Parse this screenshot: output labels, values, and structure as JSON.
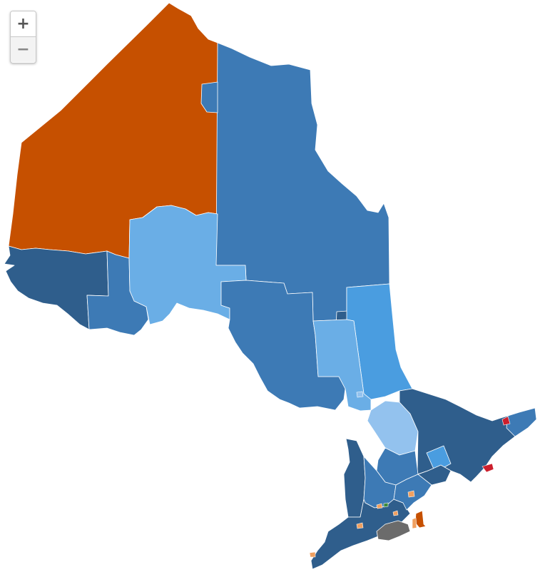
{
  "map": {
    "colors": {
      "dark_blue": "#2f5e8c",
      "mid_blue": "#3d7ab5",
      "bright_blue": "#4a9de0",
      "light_blue": "#6aaee6",
      "pale_blue": "#93c2ee",
      "orange": "#c65000",
      "light_orange": "#f0a060",
      "red": "#cc1f2d",
      "gray": "#6b6b6b",
      "green": "#3c8a3c"
    },
    "regions": [
      "kiiwetinoong",
      "kenora-rainy-river",
      "thunder-bay-superior-north",
      "thunder-bay-atikokan",
      "mushkegowuk-james-bay",
      "algoma-manitoulin",
      "timiskaming-cochrane",
      "nickel-belt",
      "timmins",
      "nipissing",
      "sudbury",
      "parry-sound-muskoka",
      "eastern-ontario",
      "southwestern-ontario",
      "niagara-west",
      "niagara-centre",
      "ottawa-centre"
    ]
  },
  "controls": {
    "zoom_in": "+",
    "zoom_out": "−"
  }
}
